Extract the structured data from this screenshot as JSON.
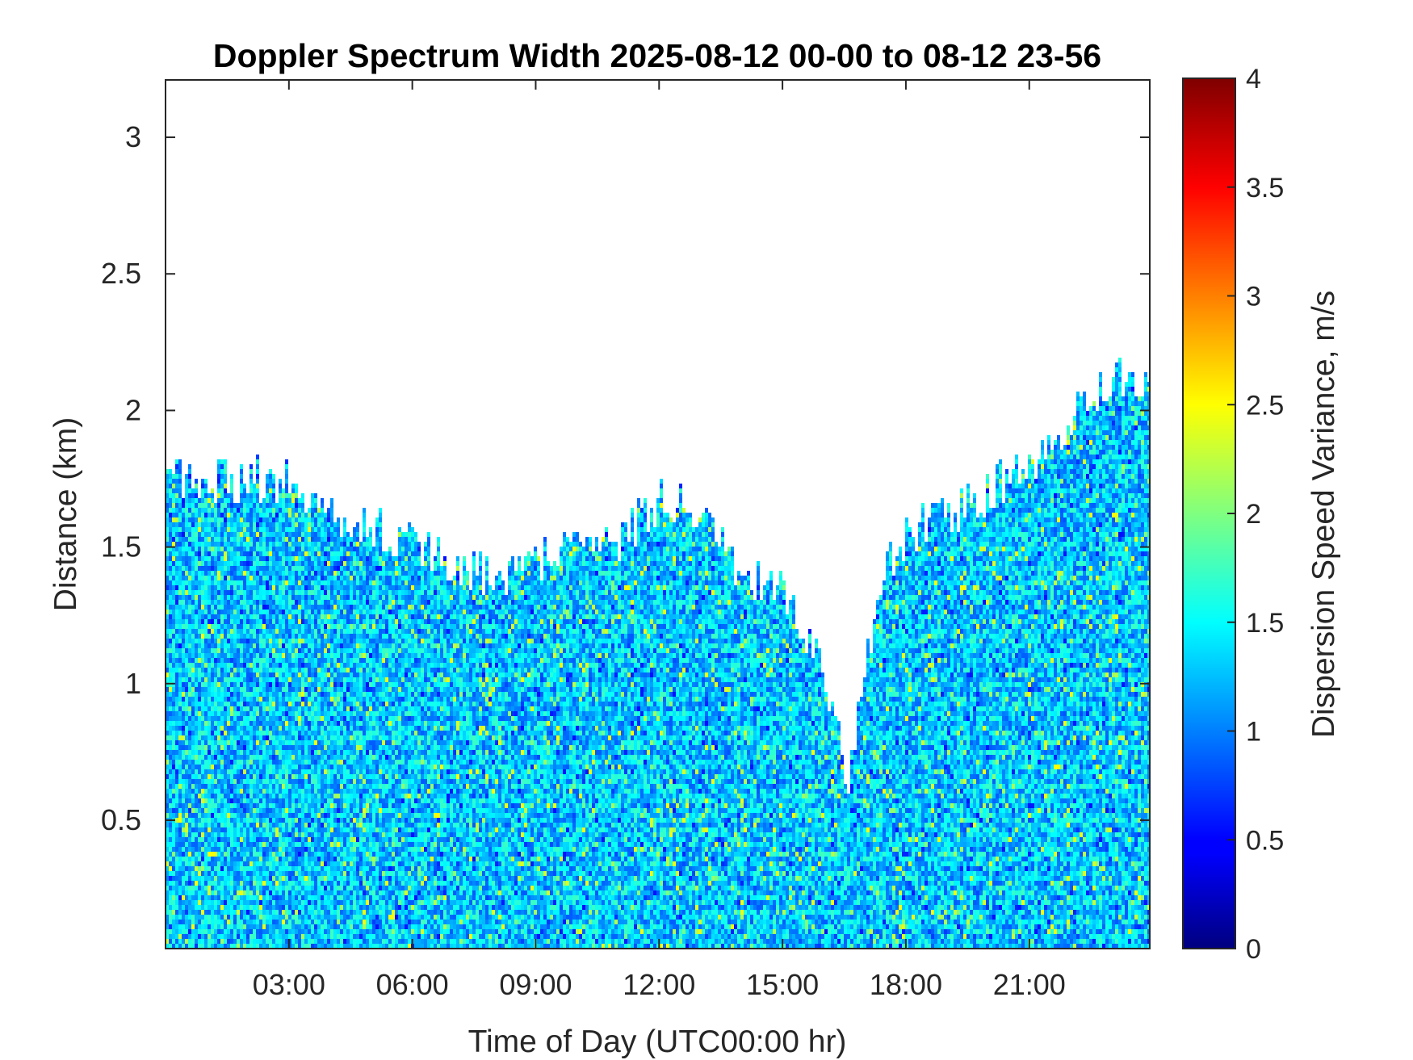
{
  "chart_data": {
    "type": "heatmap",
    "title": "Doppler Spectrum Width 2025-08-12 00-00 to 08-12 23-56",
    "xlabel": "Time of Day (UTC00:00 hr)",
    "ylabel": "Distance (km)",
    "colorbar_label": "Dispersion Speed Variance, m/s",
    "colormap": "jet",
    "xlim_hours": [
      0,
      23.93
    ],
    "ylim_km": [
      0.03,
      3.21
    ],
    "clim": [
      0,
      4
    ],
    "x_ticks": [
      {
        "value": 3,
        "label": "03:00"
      },
      {
        "value": 6,
        "label": "06:00"
      },
      {
        "value": 9,
        "label": "09:00"
      },
      {
        "value": 12,
        "label": "12:00"
      },
      {
        "value": 15,
        "label": "15:00"
      },
      {
        "value": 18,
        "label": "18:00"
      },
      {
        "value": 21,
        "label": "21:00"
      }
    ],
    "y_ticks": [
      {
        "value": 0.5,
        "label": "0.5"
      },
      {
        "value": 1,
        "label": "1"
      },
      {
        "value": 1.5,
        "label": "1.5"
      },
      {
        "value": 2,
        "label": "2"
      },
      {
        "value": 2.5,
        "label": "2.5"
      },
      {
        "value": 3,
        "label": "3"
      }
    ],
    "colorbar_ticks": [
      {
        "value": 0,
        "label": "0"
      },
      {
        "value": 0.5,
        "label": "0.5"
      },
      {
        "value": 1,
        "label": "1"
      },
      {
        "value": 1.5,
        "label": "1.5"
      },
      {
        "value": 2,
        "label": "2"
      },
      {
        "value": 2.5,
        "label": "2.5"
      },
      {
        "value": 3,
        "label": "3"
      },
      {
        "value": 3.5,
        "label": "3.5"
      },
      {
        "value": 4,
        "label": "4"
      }
    ],
    "signal_top_height_km": [
      {
        "hour": 0.0,
        "top": 1.75
      },
      {
        "hour": 1.0,
        "top": 1.72
      },
      {
        "hour": 2.0,
        "top": 1.74
      },
      {
        "hour": 3.0,
        "top": 1.75
      },
      {
        "hour": 4.0,
        "top": 1.62
      },
      {
        "hour": 5.0,
        "top": 1.55
      },
      {
        "hour": 6.0,
        "top": 1.5
      },
      {
        "hour": 7.0,
        "top": 1.42
      },
      {
        "hour": 8.0,
        "top": 1.38
      },
      {
        "hour": 9.0,
        "top": 1.45
      },
      {
        "hour": 10.0,
        "top": 1.48
      },
      {
        "hour": 11.0,
        "top": 1.5
      },
      {
        "hour": 12.0,
        "top": 1.68
      },
      {
        "hour": 13.0,
        "top": 1.58
      },
      {
        "hour": 14.0,
        "top": 1.4
      },
      {
        "hour": 14.8,
        "top": 1.35
      },
      {
        "hour": 15.5,
        "top": 1.2
      },
      {
        "hour": 16.0,
        "top": 1.0
      },
      {
        "hour": 16.6,
        "top": 0.6
      },
      {
        "hour": 17.0,
        "top": 1.1
      },
      {
        "hour": 17.5,
        "top": 1.4
      },
      {
        "hour": 18.0,
        "top": 1.55
      },
      {
        "hour": 19.0,
        "top": 1.6
      },
      {
        "hour": 20.0,
        "top": 1.7
      },
      {
        "hour": 21.0,
        "top": 1.8
      },
      {
        "hour": 22.0,
        "top": 1.95
      },
      {
        "hour": 23.0,
        "top": 2.1
      },
      {
        "hour": 23.93,
        "top": 2.05
      }
    ],
    "typical_value_m_s": 1.3,
    "grid": false
  }
}
